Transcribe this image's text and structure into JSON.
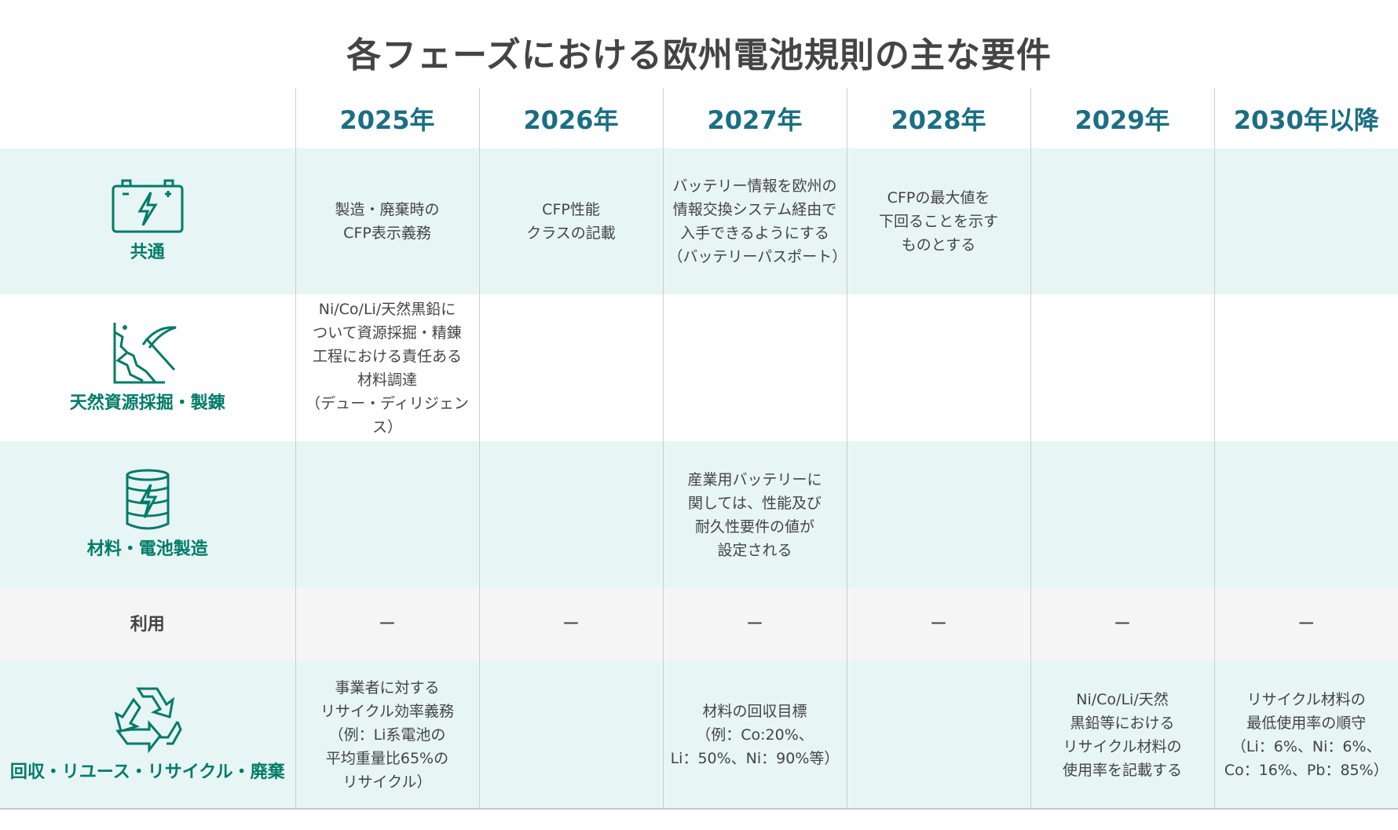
{
  "title": "各フェーズにおける欧州電池規則の主な要件",
  "years": [
    "2025年",
    "2026年",
    "2027年",
    "2028年",
    "2029年",
    "2030年以降"
  ],
  "colors": {
    "header_text": "#1b6e83",
    "category_text": "#007b68",
    "tint_row": "#e7f5f4",
    "gray_row": "#f5f5f5"
  },
  "rows": [
    {
      "category": "共通",
      "icon": "battery-icon",
      "cells": [
        "製造・廃棄時の\nCFP表示義務",
        "CFP性能\nクラスの記載",
        "バッテリー情報を欧州の\n情報交換システム経由で\n入手できるようにする\n（バッテリーパスポート）",
        "CFPの最大値を\n下回ることを示す\nものとする",
        "",
        ""
      ]
    },
    {
      "category": "天然資源採掘・製錬",
      "icon": "mining-pickaxe-icon",
      "cells": [
        "Ni/Co/Li/天然黒鉛に\nついて資源採掘・精錬\n工程における責任ある\n材料調達\n（デュー・ディリジェンス）",
        "",
        "",
        "",
        "",
        ""
      ]
    },
    {
      "category": "材料・電池製造",
      "icon": "battery-cell-icon",
      "cells": [
        "",
        "",
        "産業用バッテリーに\n関しては、性能及び\n耐久性要件の値が\n設定される",
        "",
        "",
        ""
      ]
    },
    {
      "category": "利用",
      "icon": "",
      "cells": [
        "ー",
        "ー",
        "ー",
        "ー",
        "ー",
        "ー"
      ]
    },
    {
      "category": "回収・リユース・リサイクル・廃棄",
      "icon": "recycle-icon",
      "cells": [
        "事業者に対する\nリサイクル効率義務\n（例：Li系電池の\n平均重量比65%の\nリサイクル）",
        "",
        "材料の回収目標\n（例：Co:20%、\nLi：50%、Ni：90%等）",
        "",
        "Ni/Co/Li/天然\n黒鉛等における\nリサイクル材料の\n使用率を記載する",
        "リサイクル材料の\n最低使用率の順守\n（Li：6%、Ni：6%、\nCo：16%、Pb：85%）"
      ]
    }
  ]
}
